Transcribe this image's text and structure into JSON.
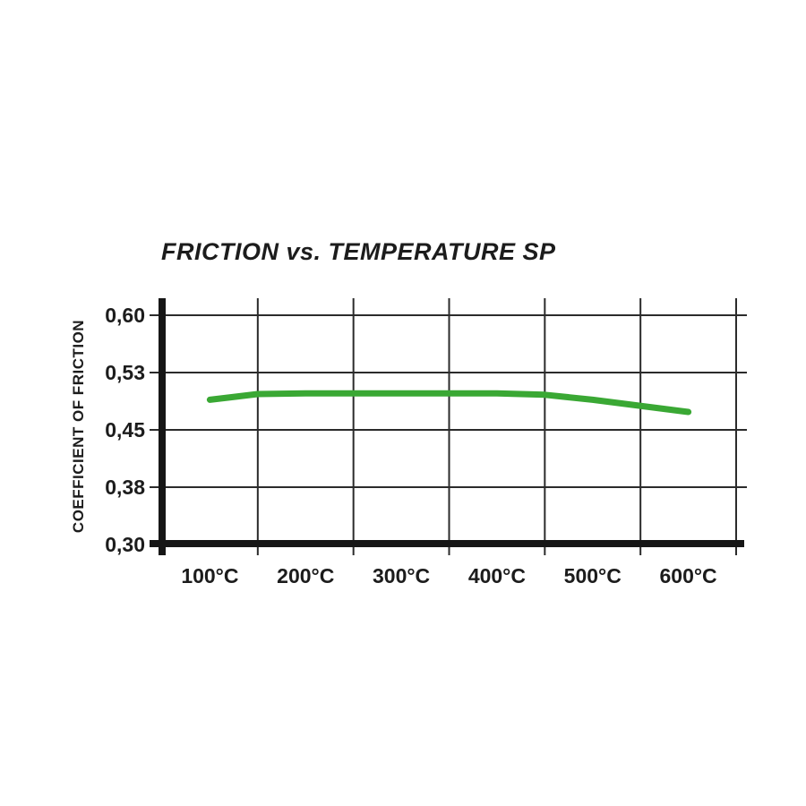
{
  "title": "FRICTION vs. TEMPERATURE SP",
  "chart_data": {
    "type": "line",
    "title": "FRICTION vs. TEMPERATURE SP",
    "xlabel": "",
    "ylabel": "COEFFICIENT OF FRICTION",
    "x_tick_labels": [
      "100°C",
      "200°C",
      "300°C",
      "400°C",
      "500°C",
      "600°C"
    ],
    "y_tick_labels": [
      "0,60",
      "0,53",
      "0,45",
      "0,38",
      "0,30"
    ],
    "y_tick_values": [
      0.6,
      0.53,
      0.45,
      0.38,
      0.3
    ],
    "ylim": [
      0.3,
      0.6
    ],
    "grid": true,
    "legend": "none",
    "series": [
      {
        "name": "SP",
        "color": "#3aa834",
        "x": [
          100,
          150,
          200,
          300,
          400,
          450,
          500,
          600
        ],
        "values": [
          0.492,
          0.5,
          0.501,
          0.501,
          0.501,
          0.499,
          0.492,
          0.475
        ]
      }
    ]
  },
  "colors": {
    "axis": "#161616",
    "gridline": "#2b2b2b",
    "line": "#3aa834",
    "text": "#1c1c1c"
  }
}
